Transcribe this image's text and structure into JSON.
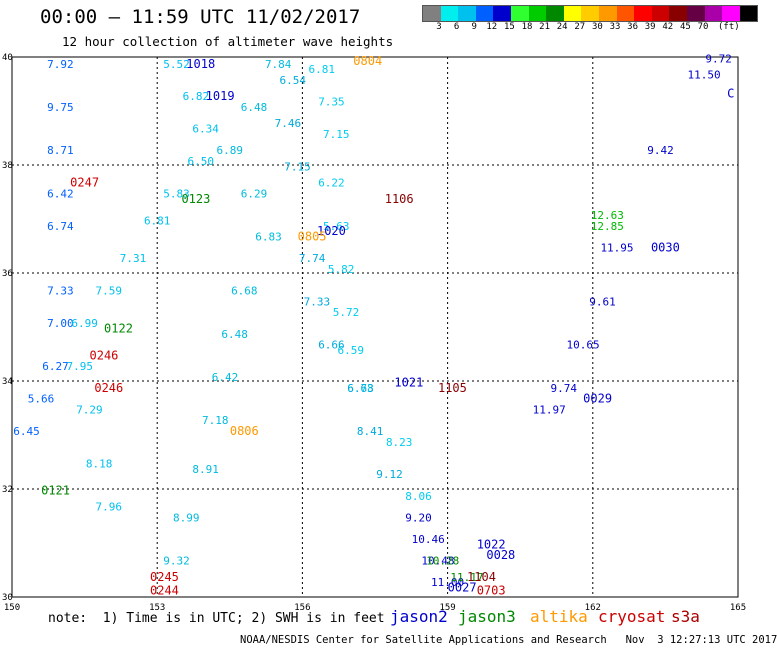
{
  "header": {
    "title": "00:00 – 11:59 UTC 11/02/2017",
    "subtitle": "12 hour collection of altimeter wave heights"
  },
  "color_scale": {
    "colors": [
      "#808080",
      "#00eeee",
      "#00c0ee",
      "#0060ff",
      "#0000cc",
      "#30ff30",
      "#00cc00",
      "#008800",
      "#ffff00",
      "#ffcc00",
      "#ff9900",
      "#ff5500",
      "#ff0000",
      "#cc0000",
      "#880000",
      "#660044",
      "#aa00aa",
      "#ff00ff",
      "#000000"
    ],
    "labels": [
      "3",
      "6",
      "9",
      "12",
      "15",
      "18",
      "21",
      "24",
      "27",
      "30",
      "33",
      "36",
      "39",
      "42",
      "45",
      "70"
    ],
    "unit": "(ft)"
  },
  "footer": {
    "note": "note:  1) Time is in UTC; 2) SWH is in feet",
    "credit": "NOAA/NESDIS Center for Satellite Applications and Research   Nov  3 12:27:13 UTC 2017"
  },
  "legend": [
    {
      "name": "jason2",
      "color": "#0000cc"
    },
    {
      "name": "jason3",
      "color": "#008800"
    },
    {
      "name": "altika",
      "color": "#ff9900"
    },
    {
      "name": "cryosat",
      "color": "#cc0000"
    },
    {
      "name": "s3a",
      "color": "#aa0000"
    }
  ],
  "chart_data": {
    "type": "scatter",
    "title": "00:00 – 11:59 UTC 11/02/2017",
    "subtitle": "12 hour collection of altimeter wave heights",
    "xlim": [
      150,
      165
    ],
    "ylim": [
      30,
      40
    ],
    "x_ticks": [
      "150",
      "153",
      "156",
      "159",
      "162",
      "165"
    ],
    "y_ticks": [
      "30",
      "32",
      "34",
      "36",
      "38",
      "40"
    ],
    "grid": true,
    "legend_position": "bottom",
    "series": [
      {
        "name": "jason2",
        "color": "#0000cc",
        "points": [
          [
            158.4,
            31.4,
            "9.20"
          ],
          [
            158.6,
            31.0,
            "10.46"
          ],
          [
            158.8,
            30.6,
            "10.48"
          ],
          [
            159.0,
            30.2,
            "11.00"
          ],
          [
            161.1,
            33.4,
            "11.97"
          ],
          [
            161.4,
            33.8,
            "9.74"
          ],
          [
            161.8,
            34.6,
            "10.65"
          ],
          [
            162.2,
            35.4,
            "9.61"
          ],
          [
            162.5,
            36.4,
            "11.95"
          ],
          [
            163.4,
            38.2,
            "9.42"
          ],
          [
            164.3,
            39.6,
            "11.50"
          ],
          [
            164.6,
            39.9,
            "9.72"
          ]
        ]
      },
      {
        "name": "jason2",
        "color": "#0060ff",
        "points": [
          [
            151.0,
            39.8,
            "7.92"
          ],
          [
            151.0,
            39.0,
            "9.75"
          ],
          [
            151.0,
            38.2,
            "8.71"
          ],
          [
            151.0,
            37.4,
            "6.42"
          ],
          [
            151.0,
            36.8,
            "6.74"
          ],
          [
            151.0,
            35.6,
            "7.33"
          ],
          [
            151.0,
            35.0,
            "7.00"
          ],
          [
            150.9,
            34.2,
            "6.27"
          ],
          [
            150.6,
            33.6,
            "5.66"
          ],
          [
            150.3,
            33.0,
            "6.45"
          ]
        ]
      },
      {
        "name": "jason2",
        "color": "#00c0ee",
        "points": [
          [
            153.4,
            39.8,
            "5.52"
          ],
          [
            153.8,
            39.2,
            "6.82"
          ],
          [
            154.0,
            38.6,
            "6.34"
          ],
          [
            153.9,
            38.0,
            "6.50"
          ],
          [
            153.4,
            37.4,
            "5.83"
          ],
          [
            153.0,
            36.9,
            "6.81"
          ],
          [
            152.5,
            36.2,
            "7.31"
          ],
          [
            152.0,
            35.6,
            "7.59"
          ],
          [
            151.5,
            35.0,
            "6.99"
          ],
          [
            151.4,
            34.2,
            "7.95"
          ],
          [
            151.6,
            33.4,
            "7.29"
          ],
          [
            151.8,
            32.4,
            "8.18"
          ],
          [
            152.0,
            31.6,
            "7.96"
          ]
        ]
      },
      {
        "name": "jason2",
        "color": "#00bbdd",
        "points": [
          [
            155.5,
            39.8,
            "7.84"
          ],
          [
            155.0,
            39.0,
            "6.48"
          ],
          [
            154.5,
            38.2,
            "6.89"
          ],
          [
            155.0,
            37.4,
            "6.29"
          ],
          [
            155.3,
            36.6,
            "6.83"
          ],
          [
            154.8,
            35.6,
            "6.68"
          ],
          [
            154.6,
            34.8,
            "6.48"
          ],
          [
            154.4,
            34.0,
            "6.42"
          ],
          [
            154.2,
            33.2,
            "7.18"
          ],
          [
            154.0,
            32.3,
            "8.91"
          ],
          [
            153.6,
            31.4,
            "8.99"
          ],
          [
            153.4,
            30.6,
            "9.32"
          ]
        ]
      },
      {
        "name": "jason2",
        "color": "#00ccee",
        "points": [
          [
            156.4,
            39.7,
            "6.81"
          ],
          [
            156.6,
            39.1,
            "7.35"
          ],
          [
            156.7,
            38.5,
            "7.15"
          ],
          [
            156.6,
            37.6,
            "6.22"
          ],
          [
            156.7,
            36.8,
            "5.63"
          ],
          [
            156.8,
            36.0,
            "5.82"
          ],
          [
            156.9,
            35.2,
            "5.72"
          ],
          [
            157.0,
            34.5,
            "6.59"
          ],
          [
            157.2,
            33.8,
            "6.78"
          ],
          [
            158.0,
            32.8,
            "8.23"
          ],
          [
            158.4,
            31.8,
            "8.06"
          ]
        ]
      },
      {
        "name": "jason2",
        "color": "#00aadd",
        "points": [
          [
            155.8,
            39.5,
            "6.54"
          ],
          [
            155.7,
            38.7,
            "7.46"
          ],
          [
            155.9,
            37.9,
            "7.15"
          ],
          [
            156.2,
            36.2,
            "7.74"
          ],
          [
            156.3,
            35.4,
            "7.33"
          ],
          [
            156.6,
            34.6,
            "6.66"
          ],
          [
            157.2,
            33.8,
            "6.63"
          ],
          [
            157.4,
            33.0,
            "8.41"
          ],
          [
            157.8,
            32.2,
            "9.12"
          ]
        ]
      },
      {
        "name": "jason3",
        "color": "#008800",
        "points": [
          [
            159.4,
            30.3,
            "11.17"
          ],
          [
            158.9,
            30.6,
            "10.28"
          ]
        ]
      },
      {
        "name": "jason3",
        "color": "#00bb00",
        "points": [
          [
            162.3,
            37.0,
            "12.63"
          ],
          [
            162.3,
            36.8,
            "12.85"
          ]
        ]
      }
    ],
    "annotations": [
      {
        "text": "1018",
        "x": 153.9,
        "y": 39.8,
        "color": "#0000cc"
      },
      {
        "text": "1019",
        "x": 154.3,
        "y": 39.2,
        "color": "#0000cc"
      },
      {
        "text": "0804",
        "x": 157.35,
        "y": 39.85,
        "color": "#ff9900"
      },
      {
        "text": "0247",
        "x": 151.5,
        "y": 37.6,
        "color": "#cc0000"
      },
      {
        "text": "0123",
        "x": 153.8,
        "y": 37.3,
        "color": "#008800"
      },
      {
        "text": "1106",
        "x": 158.0,
        "y": 37.3,
        "color": "#880000"
      },
      {
        "text": "1020",
        "x": 156.6,
        "y": 36.7,
        "color": "#0000cc"
      },
      {
        "text": "0805",
        "x": 156.2,
        "y": 36.6,
        "color": "#ff9900"
      },
      {
        "text": "0030",
        "x": 163.5,
        "y": 36.4,
        "color": "#0000cc"
      },
      {
        "text": "0122",
        "x": 152.2,
        "y": 34.9,
        "color": "#008800"
      },
      {
        "text": "0246",
        "x": 151.9,
        "y": 34.4,
        "color": "#cc0000"
      },
      {
        "text": "0246",
        "x": 152.0,
        "y": 33.8,
        "color": "#cc0000"
      },
      {
        "text": "1021",
        "x": 158.2,
        "y": 33.9,
        "color": "#0000cc"
      },
      {
        "text": "1105",
        "x": 159.1,
        "y": 33.8,
        "color": "#880000"
      },
      {
        "text": "0029",
        "x": 162.1,
        "y": 33.6,
        "color": "#0000cc"
      },
      {
        "text": "0806",
        "x": 154.8,
        "y": 33.0,
        "color": "#ff9900"
      },
      {
        "text": "0121",
        "x": 150.9,
        "y": 31.9,
        "color": "#008800"
      },
      {
        "text": "1022",
        "x": 159.9,
        "y": 30.9,
        "color": "#0000cc"
      },
      {
        "text": "0028",
        "x": 160.1,
        "y": 30.7,
        "color": "#0000cc"
      },
      {
        "text": "0245",
        "x": 153.15,
        "y": 30.3,
        "color": "#cc0000"
      },
      {
        "text": "0244",
        "x": 153.15,
        "y": 30.05,
        "color": "#cc0000"
      },
      {
        "text": "1104",
        "x": 159.7,
        "y": 30.3,
        "color": "#880000"
      },
      {
        "text": "0027",
        "x": 159.3,
        "y": 30.1,
        "color": "#0000cc"
      },
      {
        "text": "0703",
        "x": 159.9,
        "y": 30.05,
        "color": "#cc0000"
      },
      {
        "text": "C",
        "x": 164.85,
        "y": 39.25,
        "color": "#0000cc"
      }
    ]
  }
}
